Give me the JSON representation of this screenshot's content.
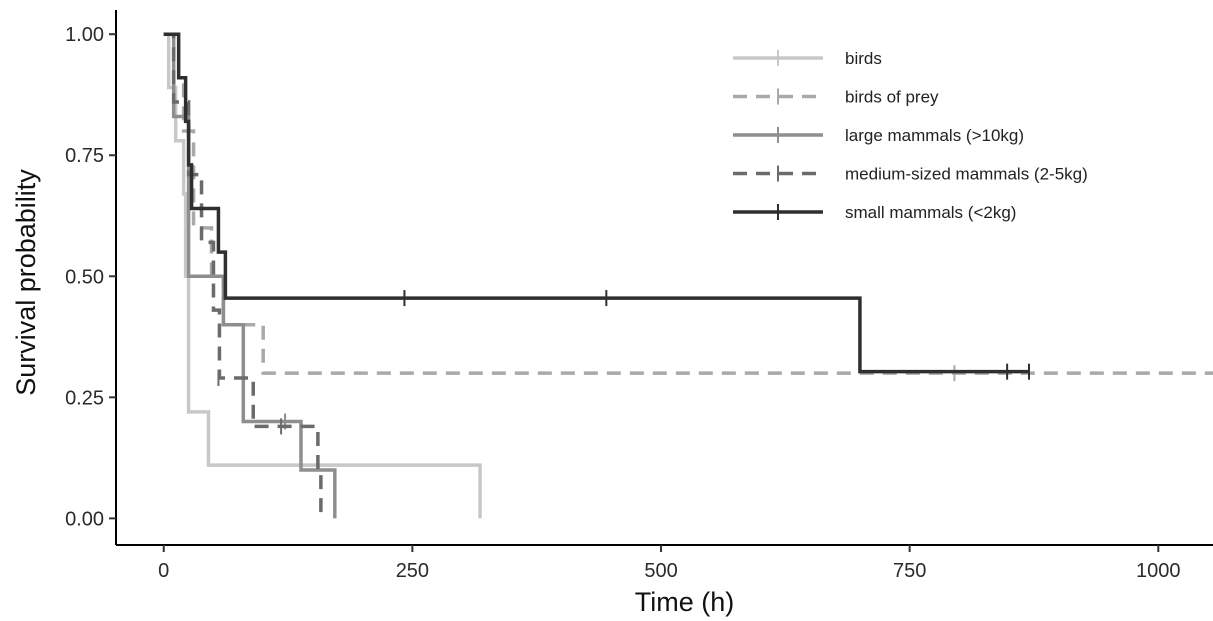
{
  "chart_data": {
    "type": "line",
    "subtype": "kaplan-meier step",
    "title": "",
    "xlabel": "Time (h)",
    "ylabel": "Survival probability",
    "xlim": [
      -48,
      1055
    ],
    "ylim": [
      -0.055,
      1.05
    ],
    "xticks": [
      0,
      250,
      500,
      750,
      1000
    ],
    "xtick_labels": [
      "0",
      "250",
      "500",
      "750",
      "1000"
    ],
    "yticks": [
      0,
      0.25,
      0.5,
      0.75,
      1
    ],
    "ytick_labels": [
      "0.00",
      "0.25",
      "0.50",
      "0.75",
      "1.00"
    ],
    "grid": false,
    "legend_position": "top-right",
    "series": [
      {
        "name": "birds",
        "color": "#c8c8c8",
        "dash": "solid",
        "steps": [
          [
            0,
            1.0
          ],
          [
            5,
            0.89
          ],
          [
            12,
            0.78
          ],
          [
            20,
            0.67
          ],
          [
            22,
            0.5
          ],
          [
            25,
            0.22
          ],
          [
            45,
            0.11
          ],
          [
            318,
            0.0
          ]
        ],
        "censor": []
      },
      {
        "name": "birds of prey",
        "color": "#a9a9a9",
        "dash": "dashed",
        "steps": [
          [
            0,
            1.0
          ],
          [
            10,
            0.9
          ],
          [
            20,
            0.8
          ],
          [
            30,
            0.6
          ],
          [
            48,
            0.5
          ],
          [
            60,
            0.4
          ],
          [
            100,
            0.3
          ]
        ],
        "end_x": 1055,
        "censor": [
          [
            795,
            0.3
          ]
        ]
      },
      {
        "name": "large mammals (>10kg)",
        "color": "#8e8e8e",
        "dash": "solid",
        "steps": [
          [
            0,
            1.0
          ],
          [
            10,
            0.83
          ],
          [
            25,
            0.5
          ],
          [
            60,
            0.4
          ],
          [
            80,
            0.2
          ],
          [
            138,
            0.1
          ],
          [
            172,
            0.0
          ]
        ],
        "censor": [
          [
            122,
            0.2
          ]
        ]
      },
      {
        "name": "medium-sized mammals (2-5kg)",
        "color": "#6b6b6b",
        "dash": "dashed",
        "steps": [
          [
            0,
            1.0
          ],
          [
            10,
            0.86
          ],
          [
            25,
            0.71
          ],
          [
            38,
            0.57
          ],
          [
            50,
            0.43
          ],
          [
            56,
            0.29
          ],
          [
            90,
            0.19
          ],
          [
            155,
            0.1
          ],
          [
            158,
            0.0
          ]
        ],
        "censor": [
          [
            55,
            0.29
          ],
          [
            118,
            0.19
          ]
        ]
      },
      {
        "name": "small mammals (<2kg)",
        "color": "#2f2f2f",
        "dash": "solid",
        "steps": [
          [
            0,
            1.0
          ],
          [
            15,
            0.91
          ],
          [
            22,
            0.82
          ],
          [
            25,
            0.73
          ],
          [
            28,
            0.64
          ],
          [
            55,
            0.55
          ],
          [
            62,
            0.455
          ],
          [
            700,
            0.303
          ]
        ],
        "end_x": 870,
        "censor": [
          [
            242,
            0.455
          ],
          [
            445,
            0.455
          ],
          [
            848,
            0.303
          ],
          [
            870,
            0.303
          ]
        ]
      }
    ]
  }
}
